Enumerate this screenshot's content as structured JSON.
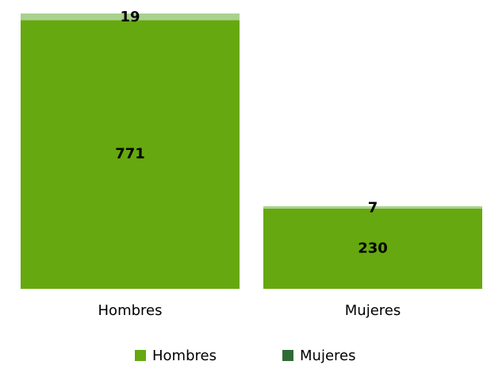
{
  "chart_data": {
    "type": "stacked_bar",
    "categories": [
      "Hombres",
      "Mujeres"
    ],
    "series": [
      {
        "name": "Hombres",
        "color": "#66a80f",
        "legend_color": "#66a80f",
        "values": [
          771,
          230
        ]
      },
      {
        "name": "Mujeres",
        "color": "#a9d18e",
        "legend_color": "#2f6b35",
        "values": [
          19,
          7
        ]
      }
    ],
    "ylim": [
      0,
      790
    ],
    "grid": false,
    "legend": "bottom"
  }
}
